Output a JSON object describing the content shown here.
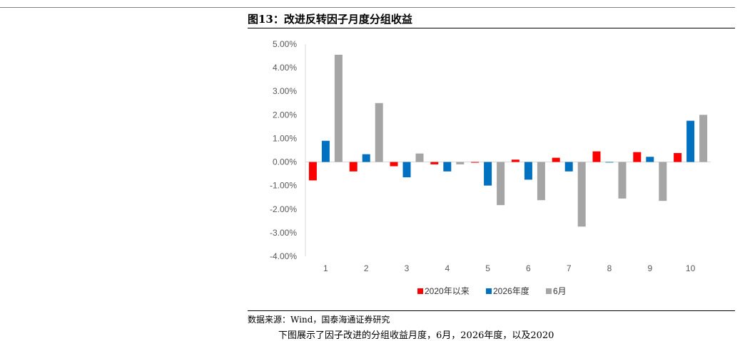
{
  "figure": {
    "title": "图13：改进反转因子月度分组收益",
    "source": "数据来源：Wind，国泰海通证券研究",
    "clipped_body_line": "下图展示了因子改进的分组收益月度，6月，2026年度，以及2020"
  },
  "chart_data": {
    "type": "bar",
    "title": "",
    "xlabel": "",
    "ylabel": "",
    "categories": [
      "1",
      "2",
      "3",
      "4",
      "5",
      "6",
      "7",
      "8",
      "9",
      "10"
    ],
    "y_ticks": [
      "5.00%",
      "4.00%",
      "3.00%",
      "2.00%",
      "1.00%",
      "0.00%",
      "-1.00%",
      "-2.00%",
      "-3.00%",
      "-4.00%"
    ],
    "ylim": [
      -0.04,
      0.05
    ],
    "grid": false,
    "legend_position": "bottom",
    "series": [
      {
        "name": "2020年以来",
        "color": "#ff0000",
        "values": [
          -0.0078,
          -0.004,
          -0.0018,
          -0.001,
          -0.0003,
          0.001,
          0.0018,
          0.0045,
          0.0042,
          0.0038
        ]
      },
      {
        "name": "2026年度",
        "color": "#0070c0",
        "values": [
          0.009,
          0.0033,
          -0.0065,
          -0.004,
          -0.01,
          -0.0075,
          -0.004,
          0.0,
          0.0022,
          0.0175
        ]
      },
      {
        "name": "6月",
        "color": "#a5a5a5",
        "values": [
          0.0455,
          0.025,
          0.0036,
          -0.001,
          -0.0183,
          -0.0162,
          -0.0274,
          -0.0155,
          -0.0165,
          0.02
        ]
      }
    ]
  }
}
